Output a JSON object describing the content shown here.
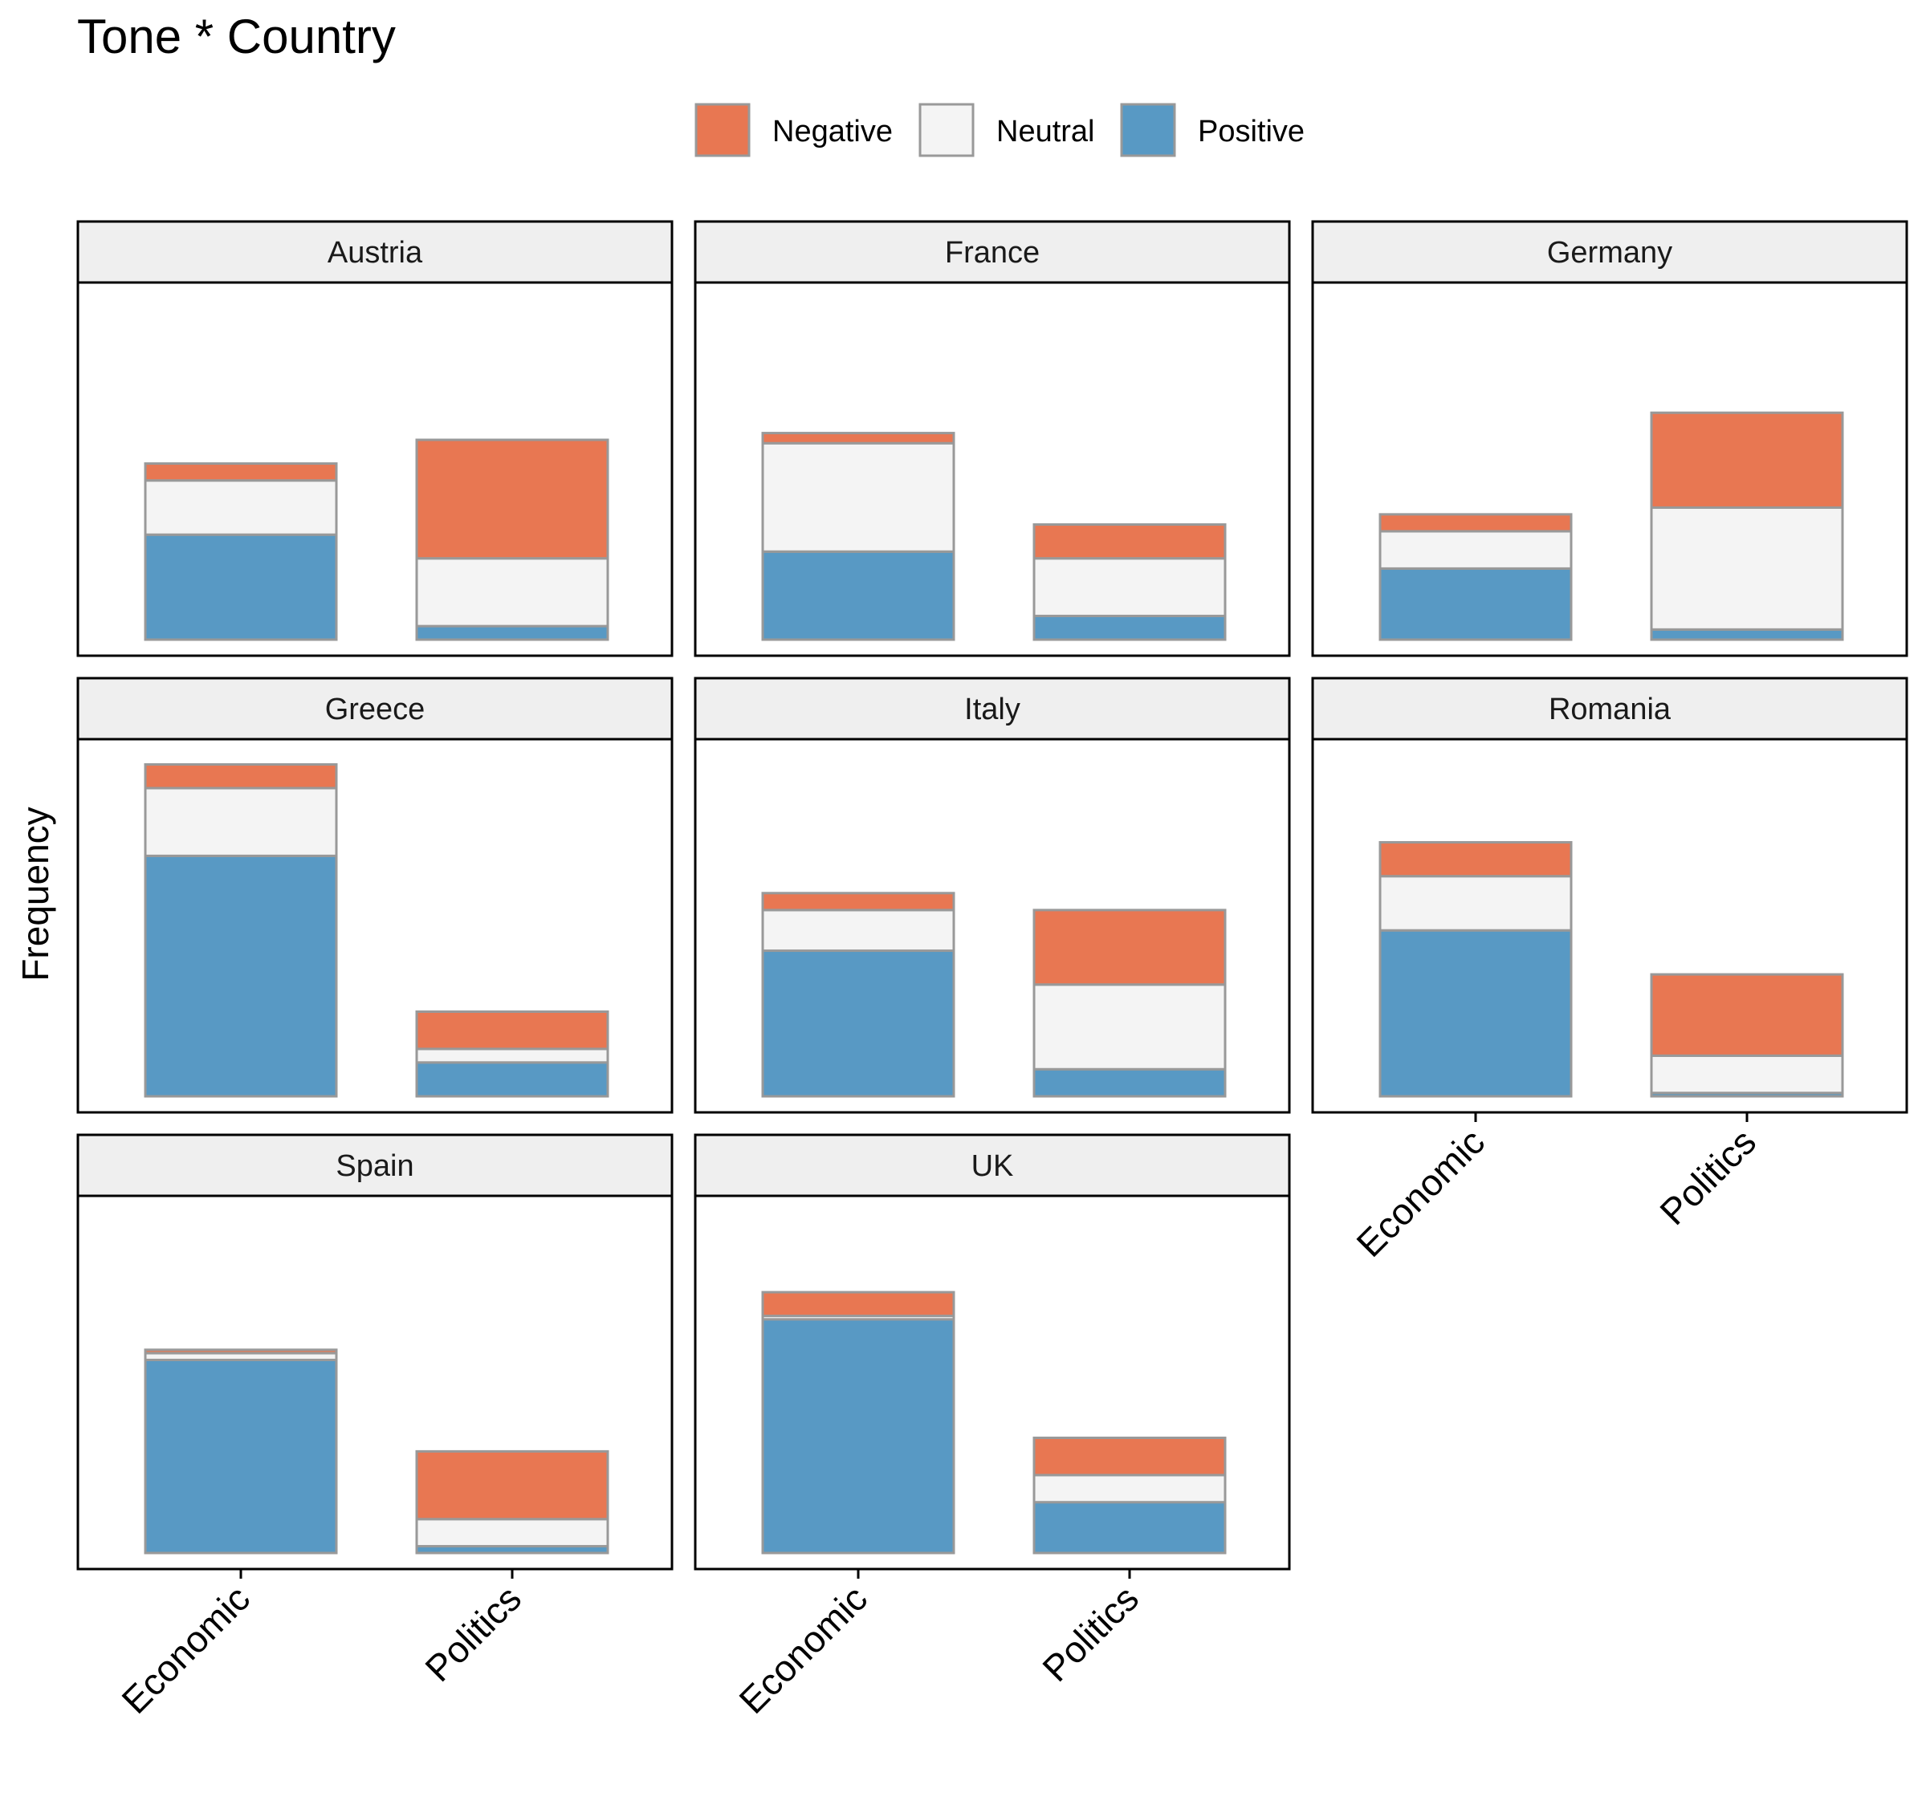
{
  "chart_data": {
    "type": "bar",
    "stacked": true,
    "faceted_by": "Country",
    "title": "Tone * Country",
    "xlabel": "",
    "ylabel": "Frequency",
    "ylim": [
      0,
      100
    ],
    "y_ticks_shown": false,
    "legend_position": "top",
    "categories": [
      "Economic",
      "Politics"
    ],
    "series": [
      {
        "name": "Positive",
        "color": "#5899c4"
      },
      {
        "name": "Neutral",
        "color": "#f4f4f4"
      },
      {
        "name": "Negative",
        "color": "#e87752"
      }
    ],
    "stack_order_bottom_to_top": [
      "Positive",
      "Neutral",
      "Negative"
    ],
    "facets": [
      {
        "name": "Austria",
        "bars": [
          {
            "category": "Economic",
            "Positive": 31,
            "Neutral": 16,
            "Negative": 5
          },
          {
            "category": "Politics",
            "Positive": 4,
            "Neutral": 20,
            "Negative": 35
          }
        ]
      },
      {
        "name": "France",
        "bars": [
          {
            "category": "Economic",
            "Positive": 26,
            "Neutral": 32,
            "Negative": 3
          },
          {
            "category": "Politics",
            "Positive": 7,
            "Neutral": 17,
            "Negative": 10
          }
        ]
      },
      {
        "name": "Germany",
        "bars": [
          {
            "category": "Economic",
            "Positive": 21,
            "Neutral": 11,
            "Negative": 5
          },
          {
            "category": "Politics",
            "Positive": 3,
            "Neutral": 36,
            "Negative": 28
          }
        ]
      },
      {
        "name": "Greece",
        "bars": [
          {
            "category": "Economic",
            "Positive": 71,
            "Neutral": 20,
            "Negative": 7
          },
          {
            "category": "Politics",
            "Positive": 10,
            "Neutral": 4,
            "Negative": 11
          }
        ]
      },
      {
        "name": "Italy",
        "bars": [
          {
            "category": "Economic",
            "Positive": 43,
            "Neutral": 12,
            "Negative": 5
          },
          {
            "category": "Politics",
            "Positive": 8,
            "Neutral": 25,
            "Negative": 22
          }
        ]
      },
      {
        "name": "Romania",
        "bars": [
          {
            "category": "Economic",
            "Positive": 49,
            "Neutral": 16,
            "Negative": 10
          },
          {
            "category": "Politics",
            "Positive": 1,
            "Neutral": 11,
            "Negative": 24
          }
        ]
      },
      {
        "name": "Spain",
        "bars": [
          {
            "category": "Economic",
            "Positive": 57,
            "Neutral": 2,
            "Negative": 1
          },
          {
            "category": "Politics",
            "Positive": 2,
            "Neutral": 8,
            "Negative": 20
          }
        ]
      },
      {
        "name": "UK",
        "bars": [
          {
            "category": "Economic",
            "Positive": 69,
            "Neutral": 1,
            "Negative": 7
          },
          {
            "category": "Politics",
            "Positive": 15,
            "Neutral": 8,
            "Negative": 11
          }
        ]
      }
    ]
  }
}
